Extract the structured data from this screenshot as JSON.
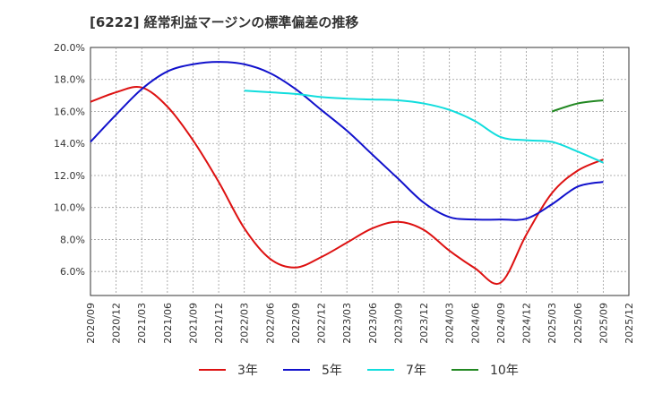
{
  "chart_data": {
    "type": "line",
    "title": "[6222]  経常利益マージンの標準偏差の推移",
    "xlabel": "",
    "ylabel": "",
    "ylim": [
      4.5,
      20.0
    ],
    "yticks": [
      6.0,
      8.0,
      10.0,
      12.0,
      14.0,
      16.0,
      18.0,
      20.0
    ],
    "ytick_labels": [
      "6.0%",
      "8.0%",
      "10.0%",
      "12.0%",
      "14.0%",
      "16.0%",
      "18.0%",
      "20.0%"
    ],
    "categories": [
      "2020/09",
      "2020/12",
      "2021/03",
      "2021/06",
      "2021/09",
      "2021/12",
      "2022/03",
      "2022/06",
      "2022/09",
      "2022/12",
      "2023/03",
      "2023/06",
      "2023/09",
      "2023/12",
      "2024/03",
      "2024/06",
      "2024/09",
      "2024/12",
      "2025/03",
      "2025/06",
      "2025/09",
      "2025/12"
    ],
    "grid": true,
    "legend_position": "bottom",
    "series": [
      {
        "name": "3年",
        "color": "#dd1111",
        "values": [
          16.6,
          17.2,
          17.5,
          16.3,
          14.2,
          11.6,
          8.7,
          6.8,
          6.25,
          6.9,
          7.8,
          8.7,
          9.1,
          8.6,
          7.3,
          6.2,
          5.3,
          8.3,
          10.9,
          12.3,
          13.0,
          null
        ]
      },
      {
        "name": "5年",
        "color": "#1111cc",
        "values": [
          14.1,
          15.8,
          17.4,
          18.5,
          18.95,
          19.1,
          18.95,
          18.4,
          17.4,
          16.1,
          14.8,
          13.3,
          11.8,
          10.3,
          9.4,
          9.25,
          9.25,
          9.3,
          10.2,
          11.3,
          11.6,
          null
        ]
      },
      {
        "name": "7年",
        "color": "#11dddd",
        "values": [
          null,
          null,
          null,
          null,
          null,
          null,
          17.3,
          17.2,
          17.1,
          16.9,
          16.8,
          16.75,
          16.7,
          16.5,
          16.1,
          15.4,
          14.4,
          14.2,
          14.1,
          13.5,
          12.8,
          null
        ]
      },
      {
        "name": "10年",
        "color": "#228822",
        "values": [
          null,
          null,
          null,
          null,
          null,
          null,
          null,
          null,
          null,
          null,
          null,
          null,
          null,
          null,
          null,
          null,
          null,
          null,
          16.0,
          16.5,
          16.7,
          null
        ]
      }
    ]
  }
}
